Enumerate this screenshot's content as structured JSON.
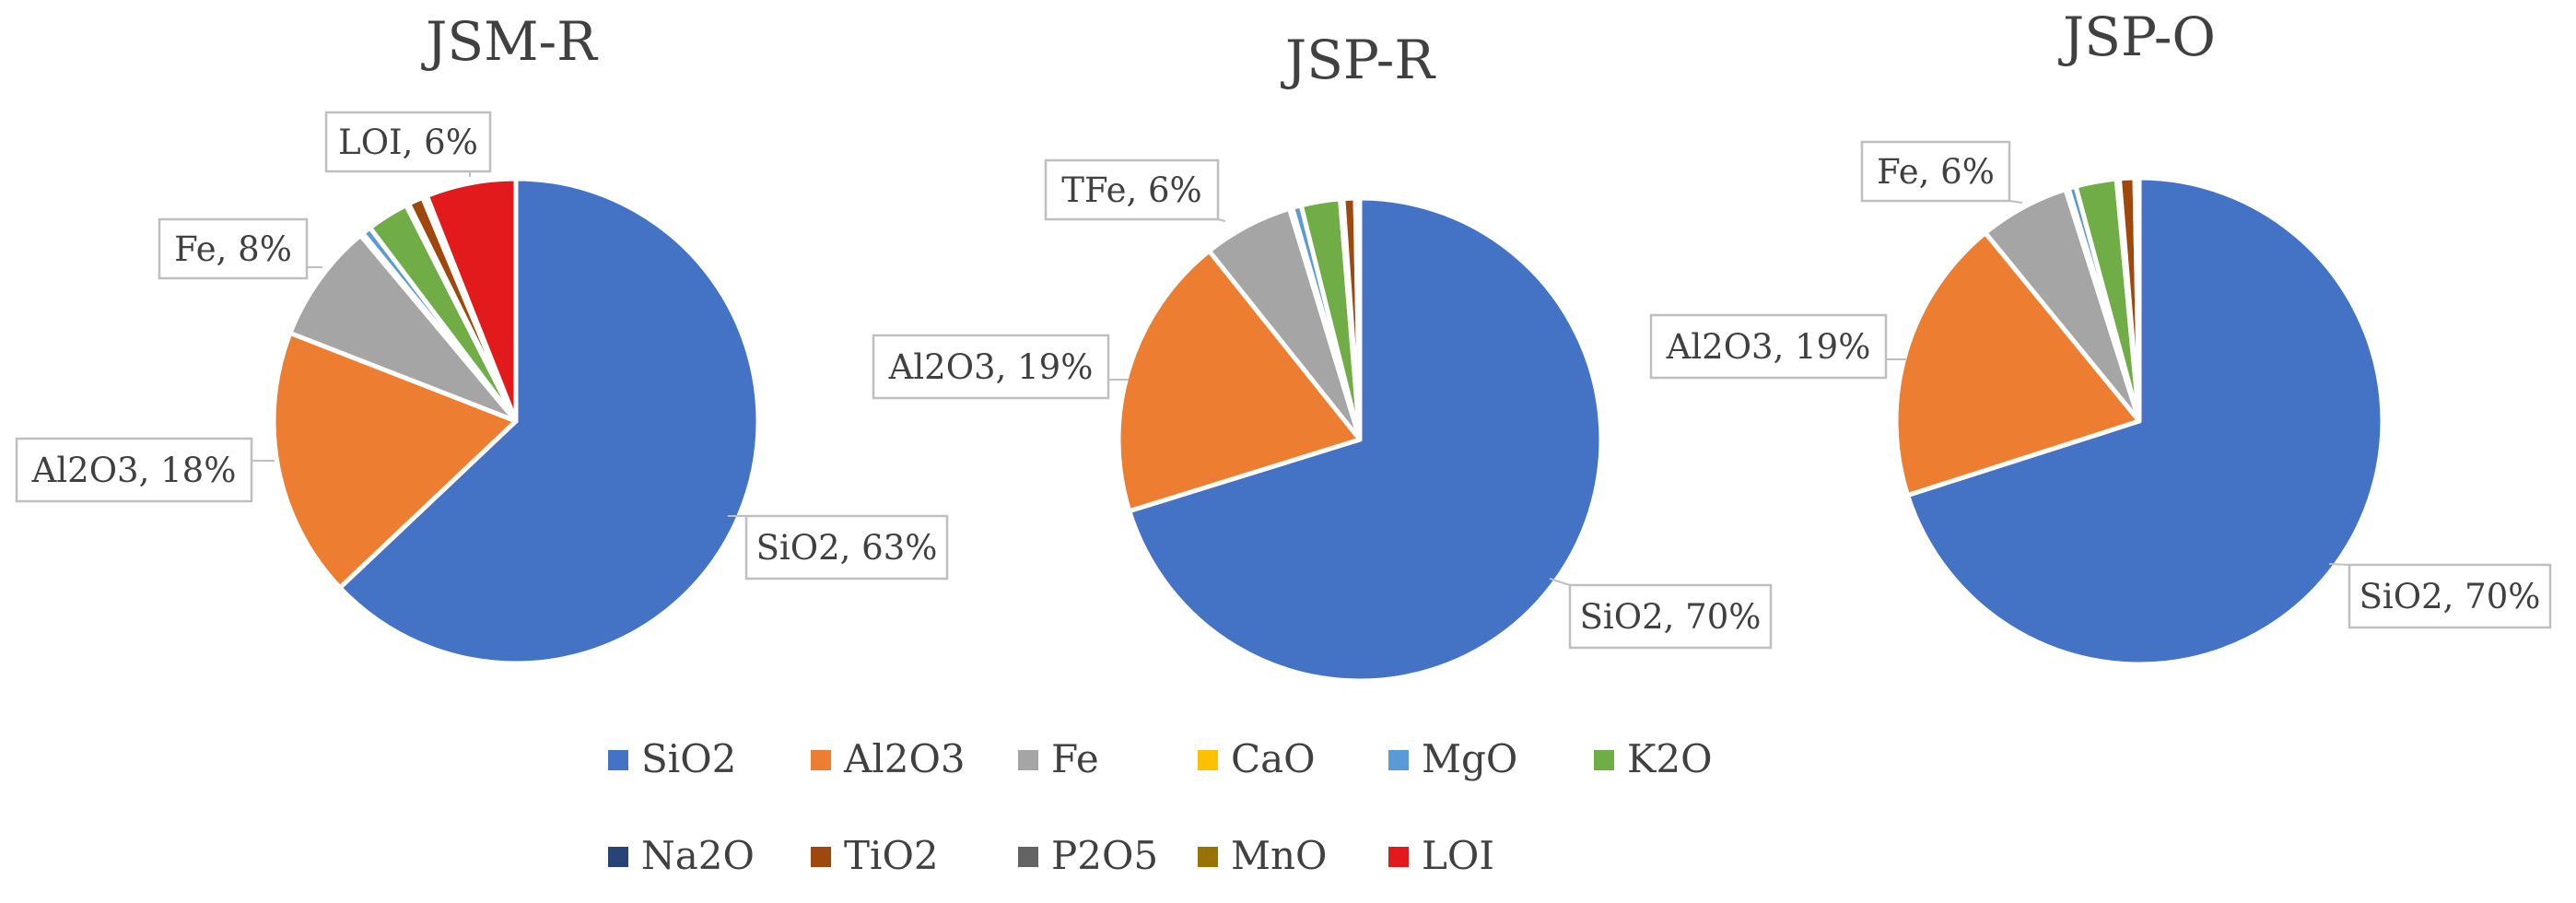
{
  "chart_data": [
    {
      "type": "pie",
      "title": "JSM-R",
      "categories": [
        "SiO2",
        "Al2O3",
        "Fe",
        "CaO",
        "MgO",
        "K2O",
        "Na2O",
        "TiO2",
        "P2O5",
        "MnO",
        "LOI"
      ],
      "values": [
        63.0,
        18.0,
        8.0,
        0.2,
        0.6,
        2.8,
        0.2,
        1.0,
        0.2,
        0.1,
        6.0
      ],
      "labels": [
        {
          "category": "SiO2",
          "text": "SiO2, 63%"
        },
        {
          "category": "Al2O3",
          "text": "Al2O3, 18%"
        },
        {
          "category": "Fe",
          "text": "Fe, 8%"
        },
        {
          "category": "LOI",
          "text": "LOI, 6%"
        }
      ]
    },
    {
      "type": "pie",
      "title": "JSP-R",
      "categories": [
        "SiO2",
        "Al2O3",
        "TFe",
        "CaO",
        "MgO",
        "K2O",
        "Na2O",
        "TiO2",
        "P2O5",
        "MnO",
        "LOI"
      ],
      "values": [
        70.0,
        19.0,
        6.0,
        0.2,
        0.6,
        2.6,
        0.2,
        0.8,
        0.2,
        0.1,
        0.0
      ],
      "labels": [
        {
          "category": "SiO2",
          "text": "SiO2, 70%"
        },
        {
          "category": "Al2O3",
          "text": "Al2O3, 19%"
        },
        {
          "category": "TFe",
          "text": "TFe, 6%"
        }
      ]
    },
    {
      "type": "pie",
      "title": "JSP-O",
      "categories": [
        "SiO2",
        "Al2O3",
        "Fe",
        "CaO",
        "MgO",
        "K2O",
        "Na2O",
        "TiO2",
        "P2O5",
        "MnO",
        "LOI"
      ],
      "values": [
        70.0,
        19.0,
        6.0,
        0.2,
        0.5,
        2.7,
        0.2,
        1.0,
        0.2,
        0.1,
        0.0
      ],
      "labels": [
        {
          "category": "SiO2",
          "text": "SiO2, 70%"
        },
        {
          "category": "Al2O3",
          "text": "Al2O3, 19%"
        },
        {
          "category": "Fe",
          "text": "Fe, 6%"
        }
      ]
    }
  ],
  "legend": {
    "items": [
      {
        "label": "SiO2",
        "color": "#4472C4"
      },
      {
        "label": "Al2O3",
        "color": "#ED7D31"
      },
      {
        "label": "Fe",
        "color": "#A5A5A5"
      },
      {
        "label": "CaO",
        "color": "#FFC000"
      },
      {
        "label": "MgO",
        "color": "#5B9BD5"
      },
      {
        "label": "K2O",
        "color": "#70AD47"
      },
      {
        "label": "Na2O",
        "color": "#264478"
      },
      {
        "label": "TiO2",
        "color": "#9E480E"
      },
      {
        "label": "P2O5",
        "color": "#636363"
      },
      {
        "label": "MnO",
        "color": "#997300"
      },
      {
        "label": "LOI",
        "color": "#E31A1C"
      }
    ]
  }
}
